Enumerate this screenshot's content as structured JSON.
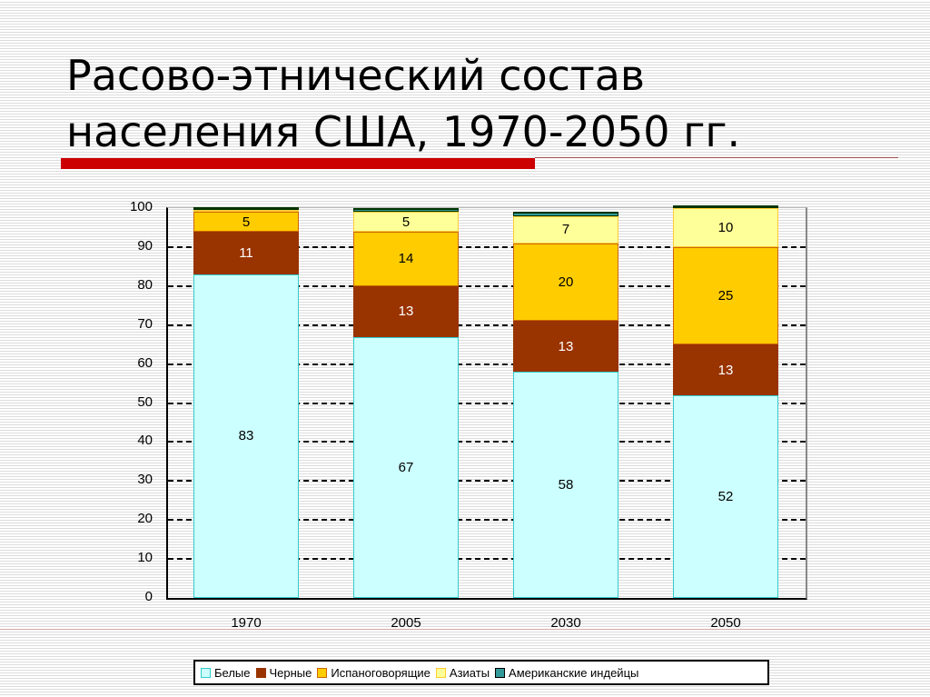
{
  "slide": {
    "title_line1": "Расово-этнический состав",
    "title_line2": "населения США, 1970-2050 гг."
  },
  "colors": {
    "title_bar": "#cc0000",
    "white": "#ccffff",
    "black": "#993300",
    "hispanic": "#ffcc00",
    "asian": "#ffff99",
    "native": "#339999"
  },
  "chart_data": {
    "type": "bar",
    "stacked": true,
    "title": "Расово-этнический состав населения США, 1970-2050 гг.",
    "xlabel": "",
    "ylabel": "",
    "ylim": [
      0,
      100
    ],
    "yticks": [
      "0",
      "10",
      "20",
      "30",
      "40",
      "50",
      "60",
      "70",
      "80",
      "90",
      "100"
    ],
    "grid": true,
    "legend_position": "bottom",
    "categories": [
      "1970",
      "2005",
      "2030",
      "2050"
    ],
    "series": [
      {
        "name": "Белые",
        "color": "#ccffff",
        "values": [
          83,
          67,
          58,
          52
        ]
      },
      {
        "name": "Черные",
        "color": "#993300",
        "values": [
          11,
          13,
          13,
          13
        ]
      },
      {
        "name": "Испаноговорящие",
        "color": "#ffcc00",
        "values": [
          5,
          14,
          20,
          25
        ]
      },
      {
        "name": "Азиаты",
        "color": "#ffff99",
        "values": [
          0.5,
          5,
          7,
          10
        ]
      },
      {
        "name": "Американские индейцы",
        "color": "#339999",
        "values": [
          0.5,
          1,
          1,
          0.5
        ]
      }
    ],
    "data_labels": [
      {
        "category": "1970",
        "labels": [
          "83",
          "11",
          "5",
          "",
          ""
        ]
      },
      {
        "category": "2005",
        "labels": [
          "67",
          "13",
          "14",
          "5",
          ""
        ]
      },
      {
        "category": "2030",
        "labels": [
          "58",
          "13",
          "20",
          "7",
          ""
        ]
      },
      {
        "category": "2050",
        "labels": [
          "52",
          "13",
          "25",
          "10",
          ""
        ]
      }
    ]
  }
}
